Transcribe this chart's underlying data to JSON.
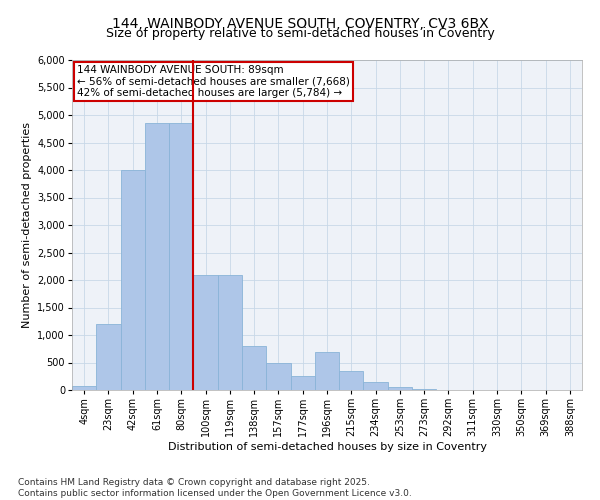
{
  "title_line1": "144, WAINBODY AVENUE SOUTH, COVENTRY, CV3 6BX",
  "title_line2": "Size of property relative to semi-detached houses in Coventry",
  "xlabel": "Distribution of semi-detached houses by size in Coventry",
  "ylabel": "Number of semi-detached properties",
  "property_label": "144 WAINBODY AVENUE SOUTH: 89sqm",
  "pct_smaller": 56,
  "pct_smaller_n": 7668,
  "pct_larger": 42,
  "pct_larger_n": 5784,
  "bin_labels": [
    "4sqm",
    "23sqm",
    "42sqm",
    "61sqm",
    "80sqm",
    "100sqm",
    "119sqm",
    "138sqm",
    "157sqm",
    "177sqm",
    "196sqm",
    "215sqm",
    "234sqm",
    "253sqm",
    "273sqm",
    "292sqm",
    "311sqm",
    "330sqm",
    "350sqm",
    "369sqm",
    "388sqm"
  ],
  "bar_heights": [
    75,
    1200,
    4000,
    4850,
    4850,
    2100,
    2100,
    800,
    500,
    250,
    700,
    350,
    150,
    50,
    10,
    5,
    2,
    1,
    0,
    0,
    0
  ],
  "bar_color": "#aec6e8",
  "bar_edgecolor": "#8ab4d8",
  "vline_color": "#cc0000",
  "vline_x_index": 4.5,
  "annotation_box_color": "#cc0000",
  "grid_color": "#c8d8e8",
  "background_color": "#eef2f8",
  "ylim_max": 6000,
  "ytick_step": 500,
  "footer_line1": "Contains HM Land Registry data © Crown copyright and database right 2025.",
  "footer_line2": "Contains public sector information licensed under the Open Government Licence v3.0.",
  "title_fontsize": 10,
  "subtitle_fontsize": 9,
  "axis_label_fontsize": 8,
  "tick_fontsize": 7,
  "annotation_fontsize": 7.5,
  "footer_fontsize": 6.5
}
